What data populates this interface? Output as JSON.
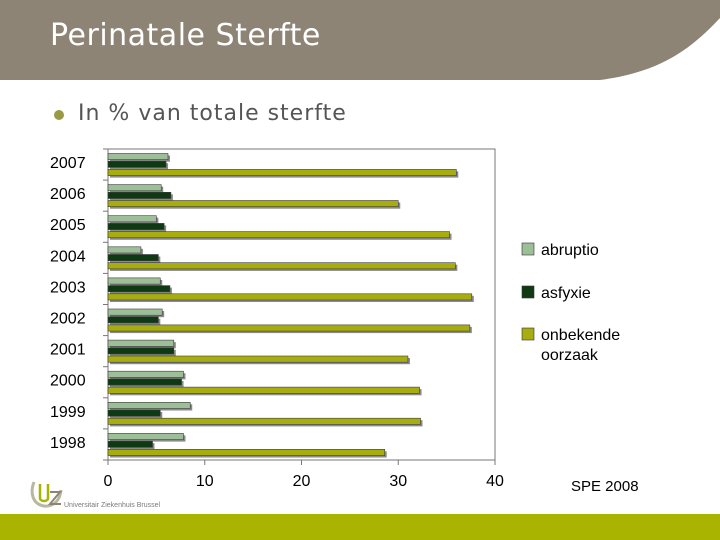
{
  "slide": {
    "title": "Perinatale Sterfte",
    "subtitle": "In % van totale sterfte",
    "footer_note": "SPE 2008",
    "logo_text": "Universitair Ziekenhuis Brussel"
  },
  "colors": {
    "header_bg": "#8d8476",
    "accent_green": "#a9b400",
    "abruptio": "#9dbf97",
    "asfyxie": "#0d3a13",
    "onbekende": "#a7ad0f"
  },
  "chart_data": {
    "type": "bar",
    "orientation": "horizontal",
    "categories": [
      "2007",
      "2006",
      "2005",
      "2004",
      "2003",
      "2002",
      "2001",
      "2000",
      "1999",
      "1998"
    ],
    "series": [
      {
        "name": "abruptio",
        "values": [
          6.2,
          5.5,
          5.0,
          3.4,
          5.4,
          5.6,
          6.8,
          7.8,
          8.5,
          7.8
        ]
      },
      {
        "name": "asfyxie",
        "values": [
          6.0,
          6.5,
          5.8,
          5.2,
          6.4,
          5.2,
          6.8,
          7.6,
          5.4,
          4.6
        ]
      },
      {
        "name": "onbekende oorzaak",
        "values": [
          36.0,
          30.0,
          35.3,
          35.9,
          37.6,
          37.4,
          31.0,
          32.2,
          32.3,
          28.6
        ]
      }
    ],
    "xlim": [
      0,
      40
    ],
    "xticks": [
      "0",
      "10",
      "20",
      "30",
      "40"
    ],
    "legend": [
      "abruptio",
      "asfyxie",
      "onbekende",
      "oorzaak"
    ],
    "legend_position": "right",
    "grid": false
  }
}
